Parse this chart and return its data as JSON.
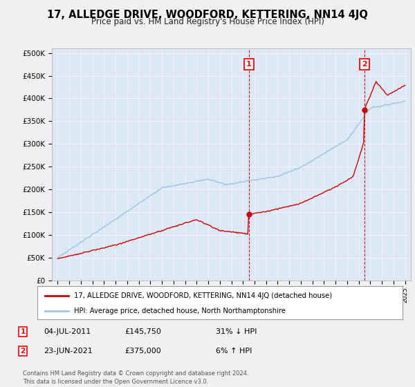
{
  "title": "17, ALLEDGE DRIVE, WOODFORD, KETTERING, NN14 4JQ",
  "subtitle": "Price paid vs. HM Land Registry's House Price Index (HPI)",
  "fig_bg_color": "#f0f0f0",
  "plot_bg_color": "#dce8f5",
  "hpi_color": "#a0c4e0",
  "price_color": "#cc0000",
  "yticks": [
    0,
    50000,
    100000,
    150000,
    200000,
    250000,
    300000,
    350000,
    400000,
    450000,
    500000
  ],
  "ytick_labels": [
    "£0",
    "£50K",
    "£100K",
    "£150K",
    "£200K",
    "£250K",
    "£300K",
    "£350K",
    "£400K",
    "£450K",
    "£500K"
  ],
  "sale1_year": 2011.5,
  "sale1_price": 145750,
  "sale2_year": 2021.47,
  "sale2_price": 375000,
  "legend_line1": "17, ALLEDGE DRIVE, WOODFORD, KETTERING, NN14 4JQ (detached house)",
  "legend_line2": "HPI: Average price, detached house, North Northamptonshire",
  "ann1_date": "04-JUL-2011",
  "ann1_price": "£145,750",
  "ann1_note": "31% ↓ HPI",
  "ann2_date": "23-JUN-2021",
  "ann2_price": "£375,000",
  "ann2_note": "6% ↑ HPI",
  "footer": "Contains HM Land Registry data © Crown copyright and database right 2024.\nThis data is licensed under the Open Government Licence v3.0."
}
